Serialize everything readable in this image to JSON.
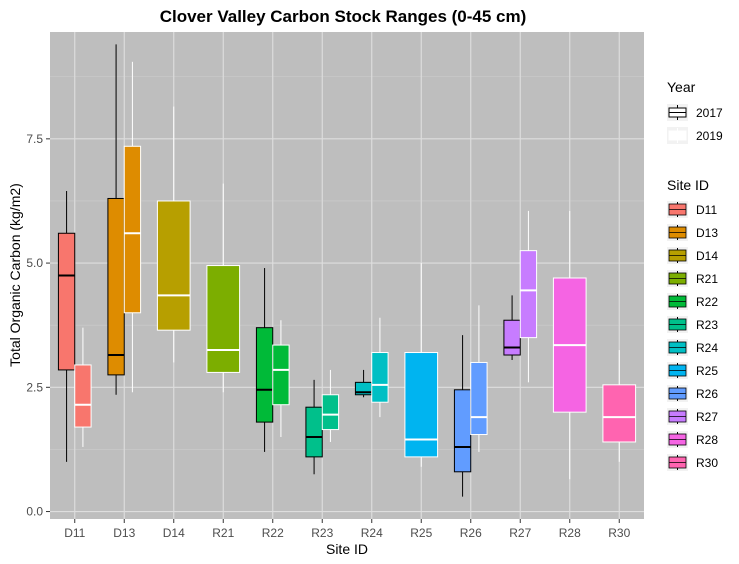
{
  "chart_data": {
    "type": "boxplot",
    "title": "Clover Valley Carbon Stock Ranges (0-45 cm)",
    "xlabel": "Site ID",
    "ylabel": "Total Organic Carbon (kg/m2)",
    "ylim": [
      -0.15,
      9.65
    ],
    "yticks": [
      0.0,
      2.5,
      5.0,
      7.5
    ],
    "ytick_labels": [
      "0.0",
      "2.5",
      "5.0",
      "7.5"
    ],
    "categories": [
      "D11",
      "D13",
      "D14",
      "R21",
      "R22",
      "R23",
      "R24",
      "R25",
      "R26",
      "R27",
      "R28",
      "R30"
    ],
    "grid": true,
    "panel_color": "#bebebe",
    "legend_placement": "right",
    "years": [
      "2017",
      "2019"
    ],
    "year_colors": {
      "2017": "#000000",
      "2019": "#ffffff"
    },
    "legend_year_title": "Year",
    "legend_site_title": "Site ID",
    "site_colors": {
      "D11": "#F8766D",
      "D13": "#DE8C00",
      "D14": "#B79F00",
      "R21": "#7CAE00",
      "R22": "#00BA38",
      "R23": "#00C08B",
      "R24": "#00BFC4",
      "R25": "#00B4F0",
      "R26": "#619CFF",
      "R27": "#C77CFF",
      "R28": "#F564E3",
      "R30": "#FF64B0"
    },
    "boxes": [
      {
        "site": "D11",
        "year": "2017",
        "dodged": true,
        "min": 1.0,
        "q1": 2.85,
        "median": 4.75,
        "q3": 5.6,
        "max": 6.45
      },
      {
        "site": "D11",
        "year": "2019",
        "dodged": true,
        "min": 1.3,
        "q1": 1.7,
        "median": 2.15,
        "q3": 2.95,
        "max": 3.7
      },
      {
        "site": "D13",
        "year": "2017",
        "dodged": true,
        "min": 2.35,
        "q1": 2.75,
        "median": 3.15,
        "q3": 6.3,
        "max": 9.4
      },
      {
        "site": "D13",
        "year": "2019",
        "dodged": true,
        "min": 2.4,
        "q1": 4.0,
        "median": 5.6,
        "q3": 7.35,
        "max": 9.05
      },
      {
        "site": "D14",
        "year": "2019",
        "dodged": false,
        "min": 3.0,
        "q1": 3.65,
        "median": 4.35,
        "q3": 6.25,
        "max": 8.15
      },
      {
        "site": "R21",
        "year": "2019",
        "dodged": false,
        "min": 2.4,
        "q1": 2.8,
        "median": 3.25,
        "q3": 4.95,
        "max": 6.6
      },
      {
        "site": "R22",
        "year": "2017",
        "dodged": true,
        "min": 1.2,
        "q1": 1.8,
        "median": 2.45,
        "q3": 3.7,
        "max": 4.9
      },
      {
        "site": "R22",
        "year": "2019",
        "dodged": true,
        "min": 1.5,
        "q1": 2.15,
        "median": 2.85,
        "q3": 3.35,
        "max": 3.85
      },
      {
        "site": "R23",
        "year": "2017",
        "dodged": true,
        "min": 0.75,
        "q1": 1.1,
        "median": 1.5,
        "q3": 2.1,
        "max": 2.65
      },
      {
        "site": "R23",
        "year": "2019",
        "dodged": true,
        "min": 1.4,
        "q1": 1.65,
        "median": 1.95,
        "q3": 2.35,
        "max": 2.85
      },
      {
        "site": "R24",
        "year": "2017",
        "dodged": true,
        "min": 2.3,
        "q1": 2.35,
        "median": 2.4,
        "q3": 2.6,
        "max": 2.85
      },
      {
        "site": "R24",
        "year": "2019",
        "dodged": true,
        "min": 1.9,
        "q1": 2.2,
        "median": 2.55,
        "q3": 3.2,
        "max": 3.9
      },
      {
        "site": "R25",
        "year": "2019",
        "dodged": false,
        "min": 0.9,
        "q1": 1.1,
        "median": 1.45,
        "q3": 3.2,
        "max": 5.0
      },
      {
        "site": "R26",
        "year": "2017",
        "dodged": true,
        "min": 0.3,
        "q1": 0.8,
        "median": 1.3,
        "q3": 2.45,
        "max": 3.55
      },
      {
        "site": "R26",
        "year": "2019",
        "dodged": true,
        "min": 1.2,
        "q1": 1.55,
        "median": 1.9,
        "q3": 3.0,
        "max": 4.15
      },
      {
        "site": "R27",
        "year": "2017",
        "dodged": true,
        "min": 3.05,
        "q1": 3.15,
        "median": 3.3,
        "q3": 3.85,
        "max": 4.35
      },
      {
        "site": "R27",
        "year": "2019",
        "dodged": true,
        "min": 2.6,
        "q1": 3.5,
        "median": 4.45,
        "q3": 5.25,
        "max": 6.05
      },
      {
        "site": "R28",
        "year": "2019",
        "dodged": false,
        "min": 0.65,
        "q1": 2.0,
        "median": 3.35,
        "q3": 4.7,
        "max": 6.05
      },
      {
        "site": "R30",
        "year": "2019",
        "dodged": false,
        "min": 1.0,
        "q1": 1.4,
        "median": 1.9,
        "q3": 2.55,
        "max": 3.25
      }
    ]
  }
}
